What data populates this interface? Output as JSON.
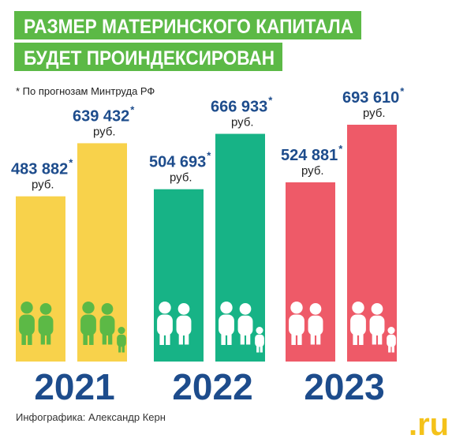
{
  "header": {
    "title_lines": [
      "РАЗМЕР МАТЕРИНСКОГО КАПИТАЛА",
      "БУДЕТ ПРОИНДЕКСИРОВАН"
    ],
    "note": "* По прогнозам Минтруда РФ"
  },
  "chart_data": {
    "type": "bar",
    "unit": "руб.",
    "asterisk": "*",
    "groups": [
      {
        "year": "2021",
        "color": "#f8d24b",
        "icon_color": "#5cb946",
        "values": [
          483882,
          639432
        ],
        "value_labels": [
          "483 882",
          "639 432"
        ]
      },
      {
        "year": "2022",
        "color": "#17b386",
        "icon_color": "#ffffff",
        "values": [
          504693,
          666933
        ],
        "value_labels": [
          "504 693",
          "666 933"
        ]
      },
      {
        "year": "2023",
        "color": "#ee5a68",
        "icon_color": "#ffffff",
        "values": [
          524881,
          693610
        ],
        "value_labels": [
          "524 881",
          "693 610"
        ]
      }
    ]
  },
  "footer": {
    "credit": "Инфографика: Александр Керн",
    "logo": ".ru"
  }
}
